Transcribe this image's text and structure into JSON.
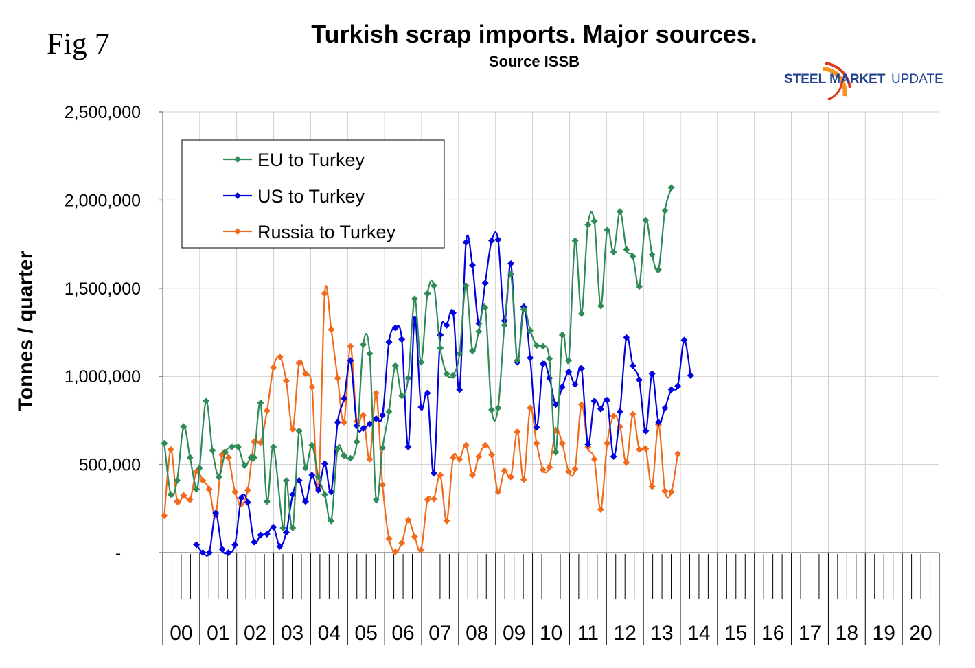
{
  "figure_label": "Fig 7",
  "logo": {
    "bold_text": "STEEL MARKET",
    "light_text": "UPDATE",
    "swoosh_colors": [
      "#f7941d",
      "#e03a1e"
    ]
  },
  "chart_data": {
    "type": "line",
    "title": "Turkish scrap imports. Major sources.",
    "subtitle": "Source ISSB",
    "xlabel": "",
    "ylabel": "Tonnes / quarter",
    "ylim": [
      0,
      2500000
    ],
    "yticks": [
      0,
      500000,
      1000000,
      1500000,
      2000000,
      2500000
    ],
    "ytick_labels": [
      "-",
      "500,000",
      "1,000,000",
      "1,500,000",
      "2,000,000",
      "2,500,000"
    ],
    "x_period_labels": [
      "00",
      "01",
      "02",
      "03",
      "04",
      "05",
      "06",
      "07",
      "08",
      "09",
      "10",
      "11",
      "12",
      "13",
      "14",
      "15",
      "16",
      "17",
      "18",
      "19",
      "20"
    ],
    "x_monthly_points": 242,
    "grid": true,
    "legend_position": "top-left",
    "series": [
      {
        "name": "EU to Turkey",
        "color": "#2e8b57",
        "points": [
          [
            0,
            620000
          ],
          [
            2,
            330000
          ],
          [
            4,
            410000
          ],
          [
            6,
            715000
          ],
          [
            8,
            540000
          ],
          [
            10,
            360000
          ],
          [
            11,
            480000
          ],
          [
            13,
            860000
          ],
          [
            15,
            580000
          ],
          [
            17,
            430000
          ],
          [
            19,
            570000
          ],
          [
            21,
            600000
          ],
          [
            23,
            600000
          ],
          [
            25,
            495000
          ],
          [
            27,
            540000
          ],
          [
            28,
            540000
          ],
          [
            30,
            850000
          ],
          [
            32,
            290000
          ],
          [
            34,
            600000
          ],
          [
            37,
            140000
          ],
          [
            38,
            410000
          ],
          [
            40,
            140000
          ],
          [
            42,
            690000
          ],
          [
            44,
            480000
          ],
          [
            46,
            610000
          ],
          [
            48,
            430000
          ],
          [
            50,
            330000
          ],
          [
            52,
            180000
          ],
          [
            54,
            590000
          ],
          [
            56,
            550000
          ],
          [
            58,
            535000
          ],
          [
            60,
            630000
          ],
          [
            62,
            1180000
          ],
          [
            64,
            1130000
          ],
          [
            66,
            300000
          ],
          [
            68,
            595000
          ],
          [
            70,
            800000
          ],
          [
            72,
            1060000
          ],
          [
            74,
            890000
          ],
          [
            76,
            990000
          ],
          [
            78,
            1440000
          ],
          [
            80,
            1080000
          ],
          [
            82,
            1470000
          ],
          [
            84,
            1515000
          ],
          [
            86,
            1160000
          ],
          [
            88,
            1015000
          ],
          [
            90,
            1005000
          ],
          [
            92,
            1130000
          ],
          [
            94,
            1515000
          ],
          [
            96,
            1145000
          ],
          [
            98,
            1255000
          ],
          [
            100,
            1390000
          ],
          [
            102,
            810000
          ],
          [
            104,
            820000
          ],
          [
            106,
            1290000
          ],
          [
            108,
            1580000
          ],
          [
            110,
            1090000
          ],
          [
            112,
            1380000
          ],
          [
            114,
            1260000
          ],
          [
            116,
            1175000
          ],
          [
            118,
            1170000
          ],
          [
            120,
            1100000
          ],
          [
            122,
            570000
          ],
          [
            124,
            1235000
          ],
          [
            126,
            1090000
          ],
          [
            128,
            1770000
          ],
          [
            130,
            1355000
          ],
          [
            132,
            1860000
          ],
          [
            134,
            1880000
          ],
          [
            136,
            1400000
          ],
          [
            138,
            1830000
          ],
          [
            140,
            1705000
          ],
          [
            142,
            1935000
          ],
          [
            144,
            1720000
          ],
          [
            146,
            1680000
          ],
          [
            148,
            1510000
          ],
          [
            150,
            1885000
          ],
          [
            152,
            1690000
          ],
          [
            154,
            1605000
          ],
          [
            156,
            1940000
          ],
          [
            158,
            2070000
          ]
        ]
      },
      {
        "name": "US to Turkey",
        "color": "#0000e0",
        "points": [
          [
            10,
            45000
          ],
          [
            12,
            0
          ],
          [
            14,
            0
          ],
          [
            16,
            225000
          ],
          [
            18,
            20000
          ],
          [
            20,
            0
          ],
          [
            22,
            45000
          ],
          [
            24,
            310000
          ],
          [
            26,
            285000
          ],
          [
            28,
            60000
          ],
          [
            30,
            100000
          ],
          [
            32,
            105000
          ],
          [
            34,
            145000
          ],
          [
            36,
            35000
          ],
          [
            38,
            115000
          ],
          [
            40,
            330000
          ],
          [
            42,
            410000
          ],
          [
            44,
            290000
          ],
          [
            46,
            440000
          ],
          [
            48,
            355000
          ],
          [
            50,
            505000
          ],
          [
            52,
            345000
          ],
          [
            54,
            740000
          ],
          [
            56,
            875000
          ],
          [
            58,
            1090000
          ],
          [
            60,
            720000
          ],
          [
            62,
            705000
          ],
          [
            64,
            730000
          ],
          [
            66,
            760000
          ],
          [
            68,
            780000
          ],
          [
            70,
            1195000
          ],
          [
            72,
            1275000
          ],
          [
            74,
            1210000
          ],
          [
            76,
            600000
          ],
          [
            78,
            1325000
          ],
          [
            80,
            825000
          ],
          [
            82,
            905000
          ],
          [
            84,
            450000
          ],
          [
            86,
            1235000
          ],
          [
            88,
            1290000
          ],
          [
            90,
            1360000
          ],
          [
            92,
            925000
          ],
          [
            94,
            1760000
          ],
          [
            96,
            1630000
          ],
          [
            98,
            1300000
          ],
          [
            100,
            1530000
          ],
          [
            102,
            1770000
          ],
          [
            104,
            1775000
          ],
          [
            106,
            1315000
          ],
          [
            108,
            1640000
          ],
          [
            110,
            1080000
          ],
          [
            112,
            1395000
          ],
          [
            114,
            1105000
          ],
          [
            116,
            710000
          ],
          [
            118,
            1070000
          ],
          [
            120,
            990000
          ],
          [
            122,
            840000
          ],
          [
            124,
            940000
          ],
          [
            126,
            1025000
          ],
          [
            128,
            955000
          ],
          [
            130,
            1045000
          ],
          [
            132,
            615000
          ],
          [
            134,
            860000
          ],
          [
            136,
            815000
          ],
          [
            138,
            865000
          ],
          [
            140,
            545000
          ],
          [
            142,
            800000
          ],
          [
            144,
            1220000
          ],
          [
            146,
            1060000
          ],
          [
            148,
            980000
          ],
          [
            150,
            690000
          ],
          [
            152,
            1015000
          ],
          [
            154,
            740000
          ],
          [
            156,
            820000
          ],
          [
            158,
            925000
          ],
          [
            160,
            945000
          ],
          [
            162,
            1205000
          ],
          [
            164,
            1005000
          ]
        ]
      },
      {
        "name": "Russia to Turkey",
        "color": "#f26b1d",
        "points": [
          [
            0,
            210000
          ],
          [
            2,
            585000
          ],
          [
            4,
            290000
          ],
          [
            6,
            325000
          ],
          [
            8,
            300000
          ],
          [
            10,
            460000
          ],
          [
            12,
            410000
          ],
          [
            14,
            360000
          ],
          [
            16,
            210000
          ],
          [
            18,
            555000
          ],
          [
            20,
            540000
          ],
          [
            22,
            345000
          ],
          [
            24,
            275000
          ],
          [
            26,
            355000
          ],
          [
            28,
            630000
          ],
          [
            30,
            625000
          ],
          [
            32,
            805000
          ],
          [
            34,
            1050000
          ],
          [
            36,
            1110000
          ],
          [
            38,
            975000
          ],
          [
            40,
            700000
          ],
          [
            42,
            1075000
          ],
          [
            44,
            1015000
          ],
          [
            46,
            940000
          ],
          [
            48,
            365000
          ],
          [
            50,
            1470000
          ],
          [
            52,
            1265000
          ],
          [
            54,
            990000
          ],
          [
            56,
            740000
          ],
          [
            58,
            1170000
          ],
          [
            60,
            745000
          ],
          [
            62,
            780000
          ],
          [
            64,
            530000
          ],
          [
            66,
            905000
          ],
          [
            68,
            385000
          ],
          [
            70,
            80000
          ],
          [
            72,
            5000
          ],
          [
            74,
            55000
          ],
          [
            76,
            185000
          ],
          [
            78,
            90000
          ],
          [
            80,
            15000
          ],
          [
            82,
            300000
          ],
          [
            84,
            305000
          ],
          [
            86,
            440000
          ],
          [
            88,
            180000
          ],
          [
            90,
            540000
          ],
          [
            92,
            530000
          ],
          [
            94,
            610000
          ],
          [
            96,
            440000
          ],
          [
            98,
            545000
          ],
          [
            100,
            610000
          ],
          [
            102,
            555000
          ],
          [
            104,
            345000
          ],
          [
            106,
            465000
          ],
          [
            108,
            430000
          ],
          [
            110,
            685000
          ],
          [
            112,
            415000
          ],
          [
            114,
            820000
          ],
          [
            116,
            620000
          ],
          [
            118,
            470000
          ],
          [
            120,
            485000
          ],
          [
            122,
            695000
          ],
          [
            124,
            620000
          ],
          [
            126,
            460000
          ],
          [
            128,
            475000
          ],
          [
            130,
            840000
          ],
          [
            132,
            600000
          ],
          [
            134,
            530000
          ],
          [
            136,
            245000
          ],
          [
            138,
            620000
          ],
          [
            140,
            775000
          ],
          [
            142,
            715000
          ],
          [
            144,
            510000
          ],
          [
            146,
            785000
          ],
          [
            148,
            585000
          ],
          [
            150,
            590000
          ],
          [
            152,
            375000
          ],
          [
            154,
            725000
          ],
          [
            156,
            350000
          ],
          [
            158,
            345000
          ],
          [
            160,
            560000
          ]
        ]
      }
    ]
  }
}
